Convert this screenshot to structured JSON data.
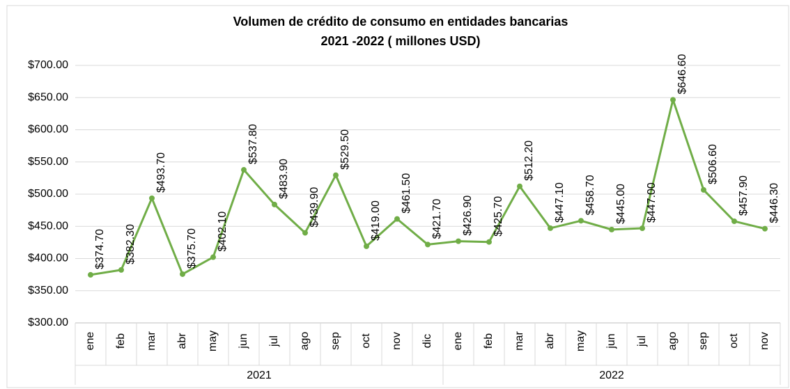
{
  "chart_data": {
    "type": "line",
    "title": [
      "Volumen de crédito de consumo en entidades bancarias",
      "2021 -2022 ( millones USD)"
    ],
    "category_groups": [
      {
        "label": "2021",
        "categories": [
          "ene",
          "feb",
          "mar",
          "abr",
          "may",
          "jun",
          "jul",
          "ago",
          "sep",
          "oct",
          "nov",
          "dic"
        ]
      },
      {
        "label": "2022",
        "categories": [
          "ene",
          "feb",
          "mar",
          "abr",
          "may",
          "jun",
          "jul",
          "ago",
          "sep",
          "oct",
          "nov"
        ]
      }
    ],
    "series": [
      {
        "color": "#70ad47",
        "values": [
          374.7,
          382.3,
          493.7,
          375.7,
          402.1,
          537.8,
          483.9,
          439.9,
          529.5,
          419.0,
          461.5,
          421.7,
          426.9,
          425.7,
          512.2,
          447.1,
          458.7,
          445.0,
          447.0,
          646.6,
          506.6,
          457.9,
          446.3
        ],
        "value_labels": [
          "$374.70",
          "$382.30",
          "$493.70",
          "$375.70",
          "$402.10",
          "$537.80",
          "$483.90",
          "$439.90",
          "$529.50",
          "$419.00",
          "$461.50",
          "$421.70",
          "$426.90",
          "$425.70",
          "$512.20",
          "$447.10",
          "$458.70",
          "$445.00",
          "$447.00",
          "$646.60",
          "$506.60",
          "$457.90",
          "$446.30"
        ]
      }
    ],
    "ylim": [
      300,
      700
    ],
    "yticks": [
      {
        "value": 300,
        "label": "$300.00"
      },
      {
        "value": 350,
        "label": "$350.00"
      },
      {
        "value": 400,
        "label": "$400.00"
      },
      {
        "value": 450,
        "label": "$450.00"
      },
      {
        "value": 500,
        "label": "$500.00"
      },
      {
        "value": 550,
        "label": "$550.00"
      },
      {
        "value": 600,
        "label": "$600.00"
      },
      {
        "value": 650,
        "label": "$650.00"
      },
      {
        "value": 700,
        "label": "$700.00"
      }
    ],
    "grid": true
  }
}
